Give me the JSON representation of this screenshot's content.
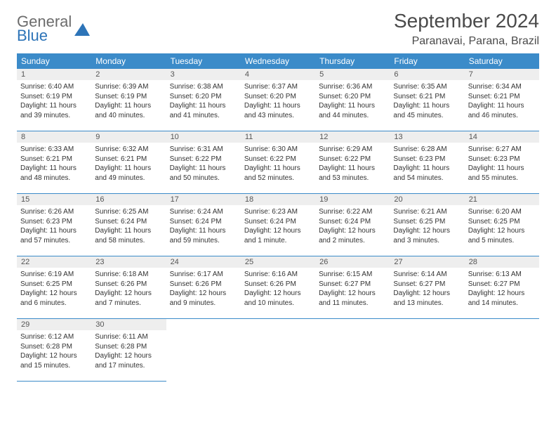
{
  "logo": {
    "word1": "General",
    "word2": "Blue"
  },
  "title": "September 2024",
  "location": "Paranavai, Parana, Brazil",
  "colors": {
    "header_bg": "#3b8bc9",
    "header_fg": "#ffffff",
    "daynum_bg": "#eeeeee",
    "cell_border": "#3b8bc9",
    "title_color": "#4a4a4a",
    "logo_gray": "#6c6c6c",
    "logo_blue": "#2d74b8"
  },
  "weekdays": [
    "Sunday",
    "Monday",
    "Tuesday",
    "Wednesday",
    "Thursday",
    "Friday",
    "Saturday"
  ],
  "weeks": [
    [
      {
        "n": "1",
        "sr": "Sunrise: 6:40 AM",
        "ss": "Sunset: 6:19 PM",
        "dl": "Daylight: 11 hours and 39 minutes."
      },
      {
        "n": "2",
        "sr": "Sunrise: 6:39 AM",
        "ss": "Sunset: 6:19 PM",
        "dl": "Daylight: 11 hours and 40 minutes."
      },
      {
        "n": "3",
        "sr": "Sunrise: 6:38 AM",
        "ss": "Sunset: 6:20 PM",
        "dl": "Daylight: 11 hours and 41 minutes."
      },
      {
        "n": "4",
        "sr": "Sunrise: 6:37 AM",
        "ss": "Sunset: 6:20 PM",
        "dl": "Daylight: 11 hours and 43 minutes."
      },
      {
        "n": "5",
        "sr": "Sunrise: 6:36 AM",
        "ss": "Sunset: 6:20 PM",
        "dl": "Daylight: 11 hours and 44 minutes."
      },
      {
        "n": "6",
        "sr": "Sunrise: 6:35 AM",
        "ss": "Sunset: 6:21 PM",
        "dl": "Daylight: 11 hours and 45 minutes."
      },
      {
        "n": "7",
        "sr": "Sunrise: 6:34 AM",
        "ss": "Sunset: 6:21 PM",
        "dl": "Daylight: 11 hours and 46 minutes."
      }
    ],
    [
      {
        "n": "8",
        "sr": "Sunrise: 6:33 AM",
        "ss": "Sunset: 6:21 PM",
        "dl": "Daylight: 11 hours and 48 minutes."
      },
      {
        "n": "9",
        "sr": "Sunrise: 6:32 AM",
        "ss": "Sunset: 6:21 PM",
        "dl": "Daylight: 11 hours and 49 minutes."
      },
      {
        "n": "10",
        "sr": "Sunrise: 6:31 AM",
        "ss": "Sunset: 6:22 PM",
        "dl": "Daylight: 11 hours and 50 minutes."
      },
      {
        "n": "11",
        "sr": "Sunrise: 6:30 AM",
        "ss": "Sunset: 6:22 PM",
        "dl": "Daylight: 11 hours and 52 minutes."
      },
      {
        "n": "12",
        "sr": "Sunrise: 6:29 AM",
        "ss": "Sunset: 6:22 PM",
        "dl": "Daylight: 11 hours and 53 minutes."
      },
      {
        "n": "13",
        "sr": "Sunrise: 6:28 AM",
        "ss": "Sunset: 6:23 PM",
        "dl": "Daylight: 11 hours and 54 minutes."
      },
      {
        "n": "14",
        "sr": "Sunrise: 6:27 AM",
        "ss": "Sunset: 6:23 PM",
        "dl": "Daylight: 11 hours and 55 minutes."
      }
    ],
    [
      {
        "n": "15",
        "sr": "Sunrise: 6:26 AM",
        "ss": "Sunset: 6:23 PM",
        "dl": "Daylight: 11 hours and 57 minutes."
      },
      {
        "n": "16",
        "sr": "Sunrise: 6:25 AM",
        "ss": "Sunset: 6:24 PM",
        "dl": "Daylight: 11 hours and 58 minutes."
      },
      {
        "n": "17",
        "sr": "Sunrise: 6:24 AM",
        "ss": "Sunset: 6:24 PM",
        "dl": "Daylight: 11 hours and 59 minutes."
      },
      {
        "n": "18",
        "sr": "Sunrise: 6:23 AM",
        "ss": "Sunset: 6:24 PM",
        "dl": "Daylight: 12 hours and 1 minute."
      },
      {
        "n": "19",
        "sr": "Sunrise: 6:22 AM",
        "ss": "Sunset: 6:24 PM",
        "dl": "Daylight: 12 hours and 2 minutes."
      },
      {
        "n": "20",
        "sr": "Sunrise: 6:21 AM",
        "ss": "Sunset: 6:25 PM",
        "dl": "Daylight: 12 hours and 3 minutes."
      },
      {
        "n": "21",
        "sr": "Sunrise: 6:20 AM",
        "ss": "Sunset: 6:25 PM",
        "dl": "Daylight: 12 hours and 5 minutes."
      }
    ],
    [
      {
        "n": "22",
        "sr": "Sunrise: 6:19 AM",
        "ss": "Sunset: 6:25 PM",
        "dl": "Daylight: 12 hours and 6 minutes."
      },
      {
        "n": "23",
        "sr": "Sunrise: 6:18 AM",
        "ss": "Sunset: 6:26 PM",
        "dl": "Daylight: 12 hours and 7 minutes."
      },
      {
        "n": "24",
        "sr": "Sunrise: 6:17 AM",
        "ss": "Sunset: 6:26 PM",
        "dl": "Daylight: 12 hours and 9 minutes."
      },
      {
        "n": "25",
        "sr": "Sunrise: 6:16 AM",
        "ss": "Sunset: 6:26 PM",
        "dl": "Daylight: 12 hours and 10 minutes."
      },
      {
        "n": "26",
        "sr": "Sunrise: 6:15 AM",
        "ss": "Sunset: 6:27 PM",
        "dl": "Daylight: 12 hours and 11 minutes."
      },
      {
        "n": "27",
        "sr": "Sunrise: 6:14 AM",
        "ss": "Sunset: 6:27 PM",
        "dl": "Daylight: 12 hours and 13 minutes."
      },
      {
        "n": "28",
        "sr": "Sunrise: 6:13 AM",
        "ss": "Sunset: 6:27 PM",
        "dl": "Daylight: 12 hours and 14 minutes."
      }
    ],
    [
      {
        "n": "29",
        "sr": "Sunrise: 6:12 AM",
        "ss": "Sunset: 6:28 PM",
        "dl": "Daylight: 12 hours and 15 minutes."
      },
      {
        "n": "30",
        "sr": "Sunrise: 6:11 AM",
        "ss": "Sunset: 6:28 PM",
        "dl": "Daylight: 12 hours and 17 minutes."
      },
      null,
      null,
      null,
      null,
      null
    ]
  ]
}
